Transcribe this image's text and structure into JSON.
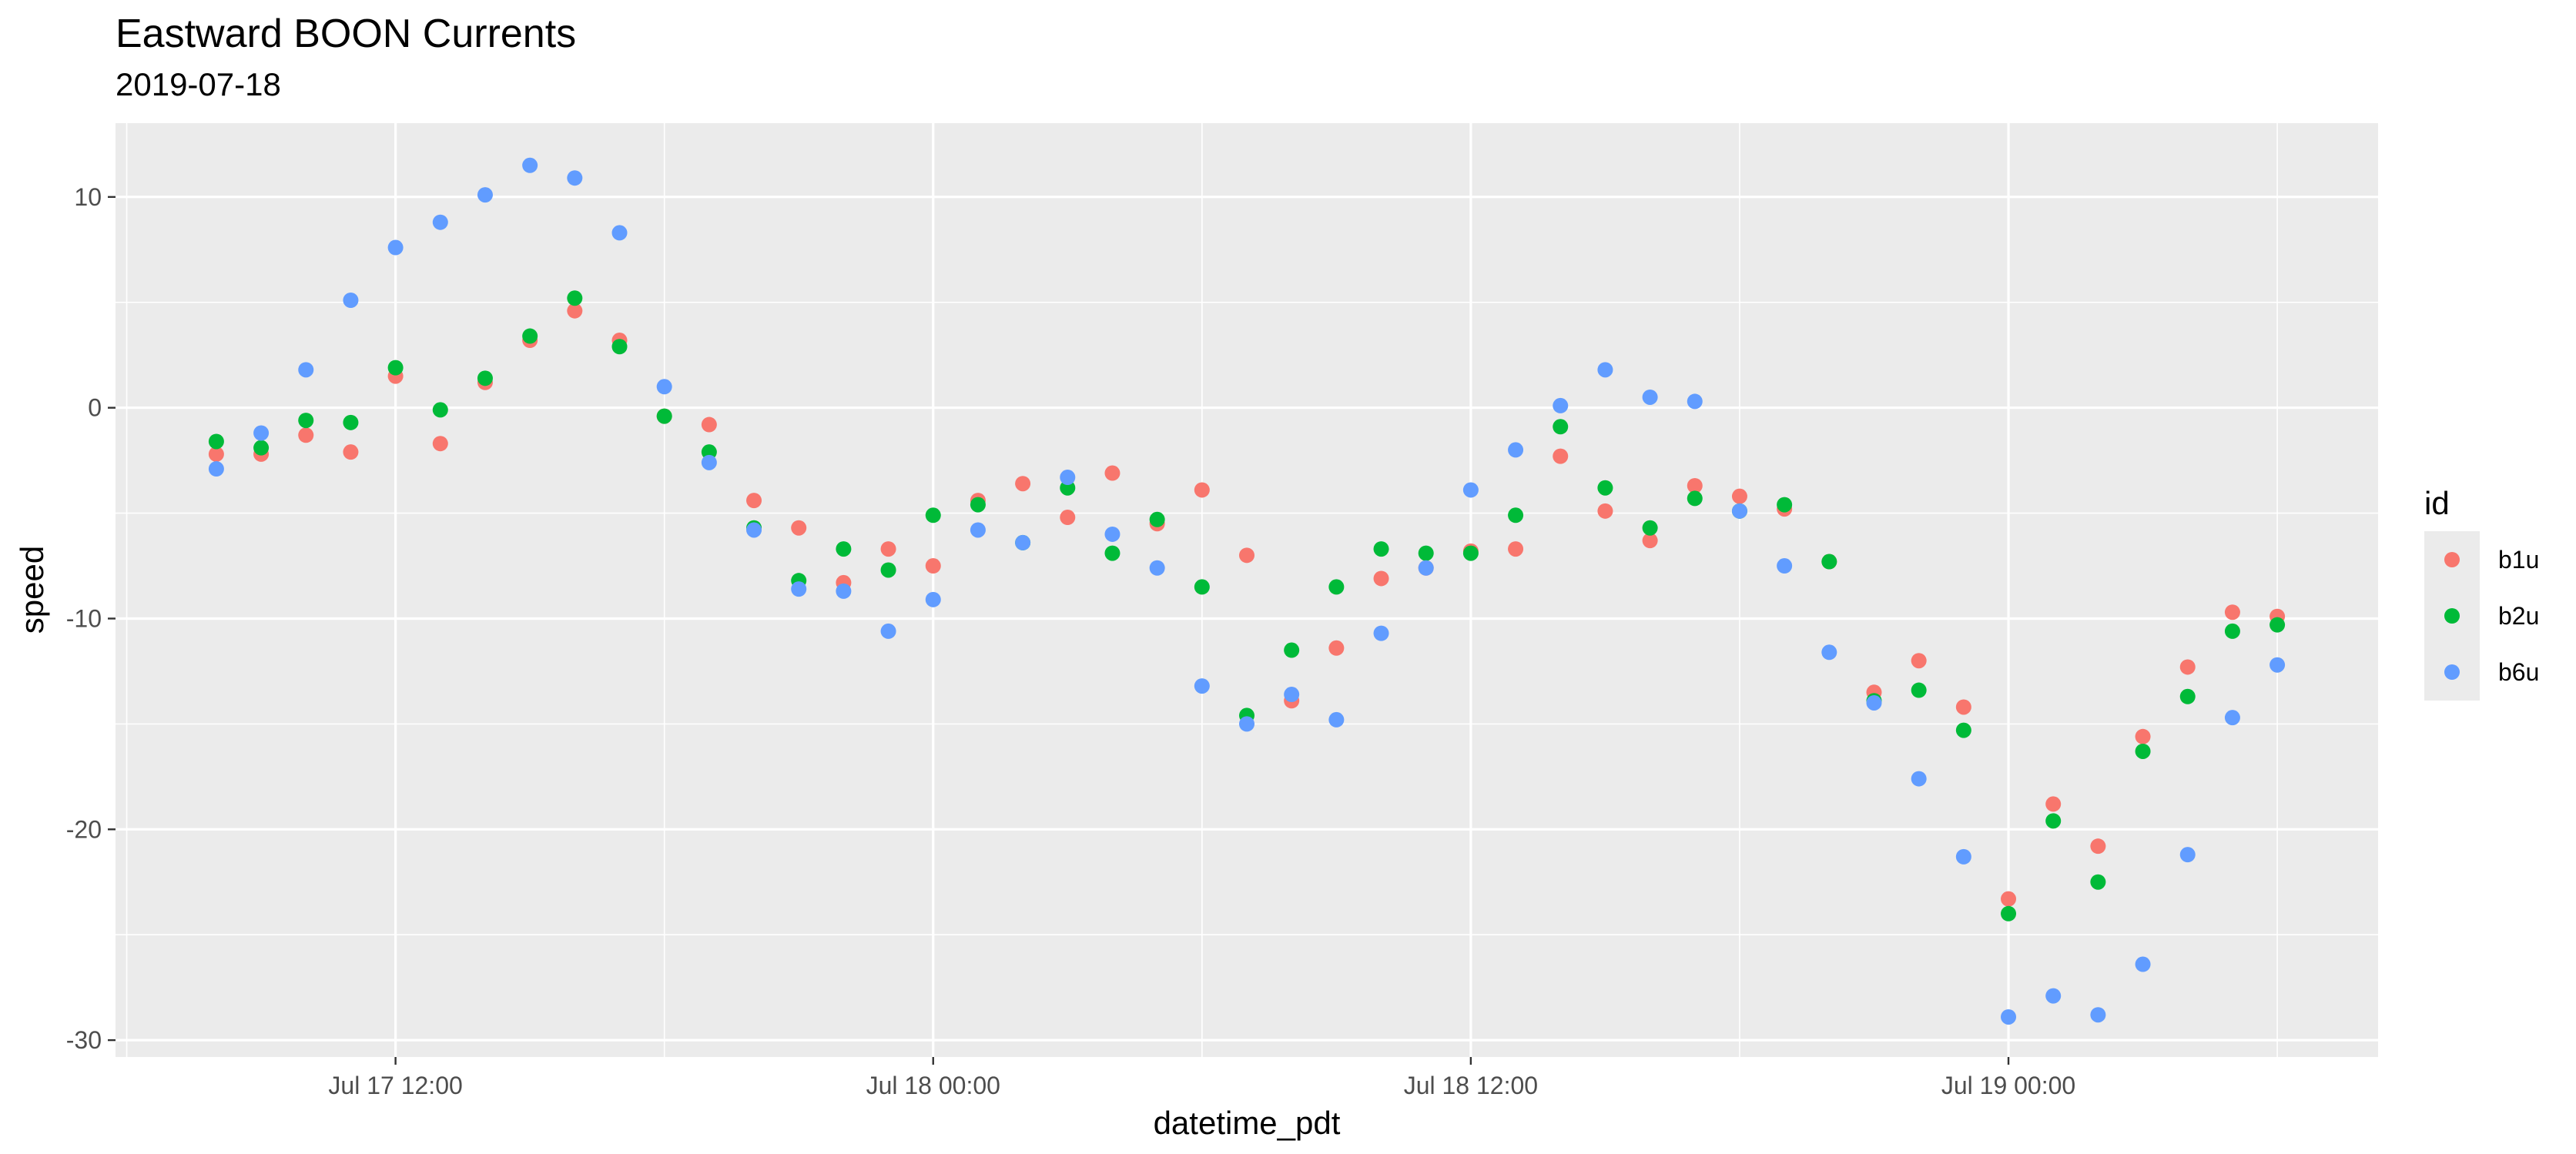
{
  "chart_data": {
    "type": "scatter",
    "title": "Eastward BOON Currents",
    "subtitle": "2019-07-18",
    "xlabel": "datetime_pdt",
    "ylabel": "speed",
    "x_ticks": [
      "Jul 17 12:00",
      "Jul 18 00:00",
      "Jul 18 12:00",
      "Jul 19 00:00"
    ],
    "x_tick_values": [
      "2019-07-17 12:00",
      "2019-07-18 00:00",
      "2019-07-18 12:00",
      "2019-07-19 00:00"
    ],
    "xlim": [
      "2019-07-17 05:45",
      "2019-07-19 08:15"
    ],
    "y_ticks": [
      10,
      0,
      -10,
      -20,
      -30
    ],
    "ylim": [
      -30.8,
      13.5
    ],
    "grid": true,
    "legend": {
      "title": "id",
      "position": "right"
    },
    "x": [
      "2019-07-17 08:00",
      "2019-07-17 09:00",
      "2019-07-17 10:00",
      "2019-07-17 11:00",
      "2019-07-17 12:00",
      "2019-07-17 13:00",
      "2019-07-17 14:00",
      "2019-07-17 15:00",
      "2019-07-17 16:00",
      "2019-07-17 17:00",
      "2019-07-17 18:00",
      "2019-07-17 19:00",
      "2019-07-17 20:00",
      "2019-07-17 21:00",
      "2019-07-17 22:00",
      "2019-07-17 23:00",
      "2019-07-18 00:00",
      "2019-07-18 01:00",
      "2019-07-18 02:00",
      "2019-07-18 03:00",
      "2019-07-18 04:00",
      "2019-07-18 05:00",
      "2019-07-18 06:00",
      "2019-07-18 07:00",
      "2019-07-18 08:00",
      "2019-07-18 09:00",
      "2019-07-18 10:00",
      "2019-07-18 11:00",
      "2019-07-18 12:00",
      "2019-07-18 13:00",
      "2019-07-18 14:00",
      "2019-07-18 15:00",
      "2019-07-18 16:00",
      "2019-07-18 17:00",
      "2019-07-18 18:00",
      "2019-07-18 19:00",
      "2019-07-18 20:00",
      "2019-07-18 21:00",
      "2019-07-18 22:00",
      "2019-07-18 23:00",
      "2019-07-19 00:00",
      "2019-07-19 01:00",
      "2019-07-19 02:00",
      "2019-07-19 03:00",
      "2019-07-19 04:00",
      "2019-07-19 05:00",
      "2019-07-19 06:00"
    ],
    "series": [
      {
        "name": "b1u",
        "color": "#F8766D",
        "values": [
          -2.2,
          -2.2,
          -1.3,
          -2.1,
          1.5,
          -1.7,
          1.2,
          3.2,
          4.6,
          3.2,
          -0.4,
          -0.8,
          -4.4,
          -5.7,
          -8.3,
          -6.7,
          -7.5,
          -4.4,
          -3.6,
          -5.2,
          -3.1,
          -5.5,
          -3.9,
          -7.0,
          -13.9,
          -11.4,
          -8.1,
          -7.6,
          -6.8,
          -6.7,
          -2.3,
          -4.9,
          -6.3,
          -3.7,
          -4.2,
          -4.8,
          -7.3,
          -13.5,
          -12.0,
          -14.2,
          -23.3,
          -18.8,
          -20.8,
          -15.6,
          -12.3,
          -9.7,
          -9.9
        ]
      },
      {
        "name": "b2u",
        "color": "#00BA38",
        "values": [
          -1.6,
          -1.9,
          -0.6,
          -0.7,
          1.9,
          -0.1,
          1.4,
          3.4,
          5.2,
          2.9,
          -0.4,
          -2.1,
          -5.7,
          -8.2,
          -6.7,
          -7.7,
          -5.1,
          -4.6,
          -6.4,
          -3.8,
          -6.9,
          -5.3,
          -8.5,
          -14.6,
          -11.5,
          -8.5,
          -6.7,
          -6.9,
          -6.9,
          -5.1,
          -0.9,
          -3.8,
          -5.7,
          -4.3,
          -4.9,
          -4.6,
          -7.3,
          -13.9,
          -13.4,
          -15.3,
          -24.0,
          -19.6,
          -22.5,
          -16.3,
          -13.7,
          -10.6,
          -10.3
        ]
      },
      {
        "name": "b6u",
        "color": "#619CFF",
        "values": [
          -2.9,
          -1.2,
          1.8,
          5.1,
          7.6,
          8.8,
          10.1,
          11.5,
          10.9,
          8.3,
          1.0,
          -2.6,
          -5.8,
          -8.6,
          -8.7,
          -10.6,
          -9.1,
          -5.8,
          -6.4,
          -3.3,
          -6.0,
          -7.6,
          -13.2,
          -15.0,
          -13.6,
          -14.8,
          -10.7,
          -7.6,
          -3.9,
          -2.0,
          0.1,
          1.8,
          0.5,
          0.3,
          -4.9,
          -7.5,
          -11.6,
          -14.0,
          -17.6,
          -21.3,
          -28.9,
          -27.9,
          -28.8,
          -26.4,
          -21.2,
          -14.7,
          -12.2
        ]
      }
    ]
  }
}
